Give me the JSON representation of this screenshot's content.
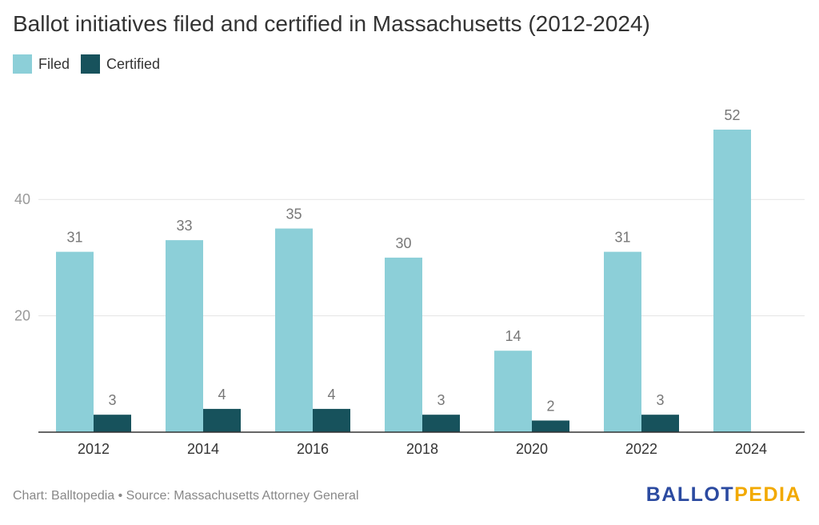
{
  "chart_data": {
    "type": "bar",
    "title": "Ballot initiatives filed and certified in Massachusetts (2012-2024)",
    "categories": [
      "2012",
      "2014",
      "2016",
      "2018",
      "2020",
      "2022",
      "2024"
    ],
    "series": [
      {
        "name": "Filed",
        "color": "#8ccfd8",
        "values": [
          31,
          33,
          35,
          30,
          14,
          31,
          52
        ]
      },
      {
        "name": "Certified",
        "color": "#17525c",
        "values": [
          3,
          4,
          4,
          3,
          2,
          3,
          null
        ]
      }
    ],
    "yticks": [
      20,
      40
    ],
    "ylim": [
      0,
      55
    ],
    "grid": true,
    "legend": "top-left"
  },
  "footer": {
    "source": "Chart: Balltopedia • Source: Massachusetts Attorney General"
  },
  "logo": {
    "part1": "BALLOT",
    "part2": "PEDIA",
    "color1": "#2b4aa0",
    "color2": "#f2a900"
  }
}
